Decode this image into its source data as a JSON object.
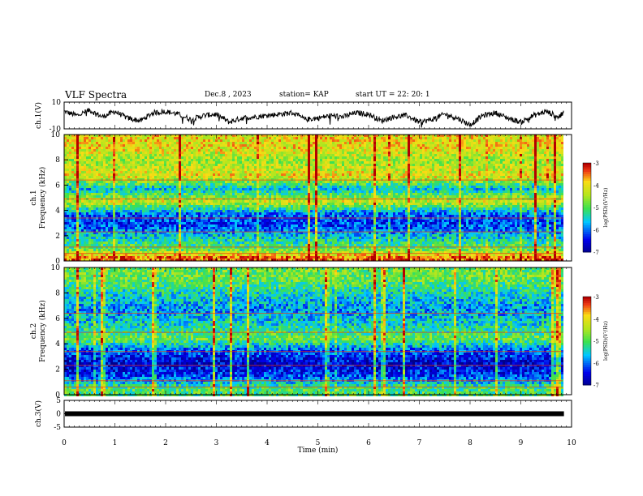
{
  "header": {
    "title": "VLF Spectra",
    "date": "Dec.8 , 2023",
    "station": "station= KAP",
    "start": "start UT = 22: 20: 1"
  },
  "colors": {
    "spectrum_low": "#0a0ad8",
    "spectrum_mid": "#22d8ff",
    "spectrum_mid2": "#44e044",
    "spectrum_high": "#f0e020",
    "spectrum_peak": "#e82010",
    "trace": "#000000"
  },
  "chart_data": [
    {
      "type": "line",
      "title": "",
      "ylabel": "ch.1(V)",
      "ylim": [
        -10,
        10
      ],
      "yticks": [
        "10",
        "-10"
      ],
      "x": [
        0,
        0.25,
        0.5,
        0.75,
        1,
        1.25,
        1.5,
        1.75,
        2,
        2.25,
        2.5,
        2.75,
        3,
        3.25,
        3.5,
        3.75,
        4,
        4.25,
        4.5,
        4.75,
        5,
        5.25,
        5.5,
        5.75,
        6,
        6.25,
        6.5,
        6.75,
        7,
        7.25,
        7.5,
        7.75,
        8,
        8.25,
        8.5,
        8.75,
        9,
        9.25,
        9.5,
        9.75,
        9.85
      ],
      "y": [
        3,
        0,
        4,
        -1,
        3,
        -2,
        -4,
        2,
        3,
        1,
        -3,
        0,
        1,
        -5,
        -2,
        -1,
        0,
        1,
        2,
        -3,
        -2,
        0,
        -1,
        2,
        1,
        -4,
        -1,
        0,
        -5,
        -3,
        1,
        -2,
        -7,
        0,
        2,
        -2,
        -5,
        0,
        3,
        -1,
        2
      ]
    },
    {
      "type": "heatmap",
      "title": "",
      "ylabel": "ch.1 Frequency (kHz)",
      "ylim": [
        0,
        10
      ],
      "yticks": [
        "0",
        "2",
        "4",
        "6",
        "8",
        "10"
      ],
      "colorbar": {
        "label": "log(PSD)(V²/Hz)",
        "range": [
          -7,
          -3
        ],
        "ticks": [
          "-3",
          "-4",
          "-5",
          "-6",
          "-7"
        ]
      },
      "bands": [
        {
          "freq": 9.0,
          "level": -4.0
        },
        {
          "freq": 8.0,
          "level": -4.5
        },
        {
          "freq": 6.8,
          "level": -4.0
        },
        {
          "freq": 5.8,
          "level": -5.6
        },
        {
          "freq": 4.8,
          "level": -4.2
        },
        {
          "freq": 3.8,
          "level": -6.0
        },
        {
          "freq": 3.0,
          "level": -6.2
        },
        {
          "freq": 2.0,
          "level": -5.5
        },
        {
          "freq": 1.0,
          "level": -4.8
        },
        {
          "freq": 0.3,
          "level": -3.4
        }
      ]
    },
    {
      "type": "heatmap",
      "title": "",
      "ylabel": "ch.2 Frequency (kHz)",
      "ylim": [
        0,
        10
      ],
      "yticks": [
        "0",
        "2",
        "4",
        "6",
        "8",
        "10"
      ],
      "colorbar": {
        "label": "log(PSD)(V²/Hz)",
        "range": [
          -7,
          -3
        ],
        "ticks": [
          "-3",
          "-4",
          "-5",
          "-6",
          "-7"
        ]
      },
      "bands": [
        {
          "freq": 9.2,
          "level": -4.8
        },
        {
          "freq": 8.0,
          "level": -5.4
        },
        {
          "freq": 6.8,
          "level": -5.8
        },
        {
          "freq": 5.6,
          "level": -5.4
        },
        {
          "freq": 4.5,
          "level": -4.8
        },
        {
          "freq": 3.6,
          "level": -6.0
        },
        {
          "freq": 2.6,
          "level": -6.6
        },
        {
          "freq": 1.6,
          "level": -6.2
        },
        {
          "freq": 0.6,
          "level": -5.0
        }
      ]
    },
    {
      "type": "line",
      "title": "",
      "ylabel": "ch.3(V)",
      "ylim": [
        -5,
        5
      ],
      "yticks": [
        "5",
        "0",
        "-5"
      ],
      "x": [
        0,
        9.85
      ],
      "y": [
        0,
        0
      ]
    }
  ],
  "xaxis": {
    "label": "Time (min)",
    "ticks": [
      "0",
      "1",
      "2",
      "3",
      "4",
      "5",
      "6",
      "7",
      "8",
      "9",
      "10"
    ],
    "xlim": [
      0,
      10
    ]
  }
}
